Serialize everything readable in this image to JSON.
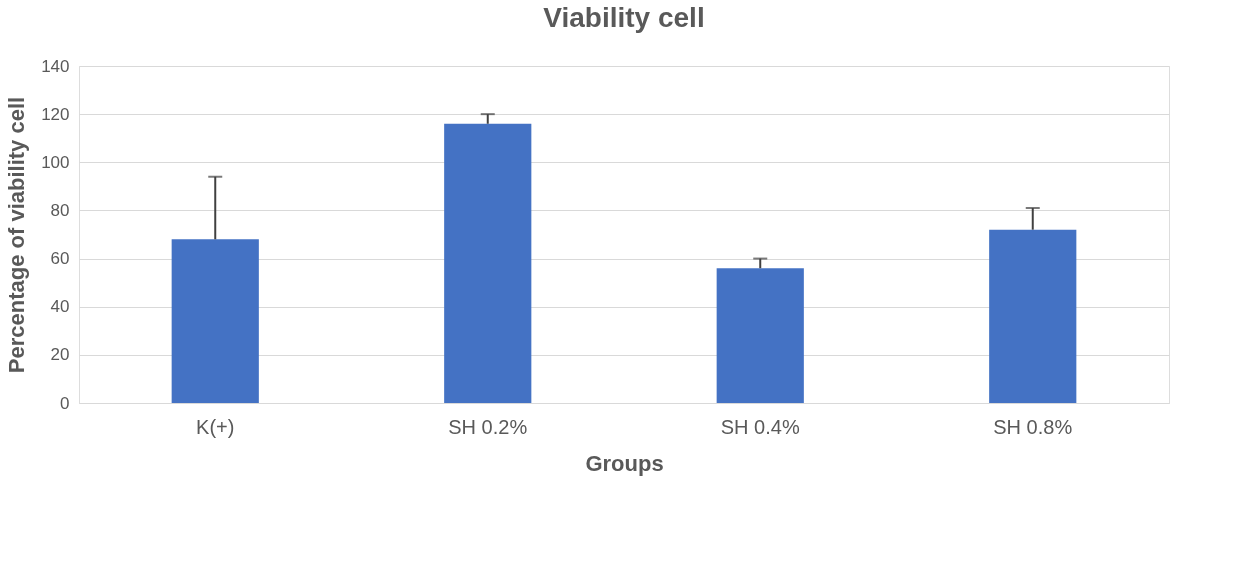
{
  "chart_data": {
    "type": "bar",
    "title": "Viability cell",
    "xlabel": "Groups",
    "ylabel": "Percentage of viability cell",
    "categories": [
      "K(+)",
      "SH 0.2%",
      "SH 0.4%",
      "SH 0.8%"
    ],
    "values": [
      68,
      116,
      56,
      72
    ],
    "errors": [
      [
        68,
        94
      ],
      [
        116,
        120
      ],
      [
        56,
        60
      ],
      [
        72,
        81
      ]
    ],
    "color": "#4472c4",
    "ylim": [
      0,
      140
    ],
    "yticks": [
      0,
      20,
      40,
      60,
      80,
      100,
      120,
      140
    ],
    "grid": "y"
  }
}
